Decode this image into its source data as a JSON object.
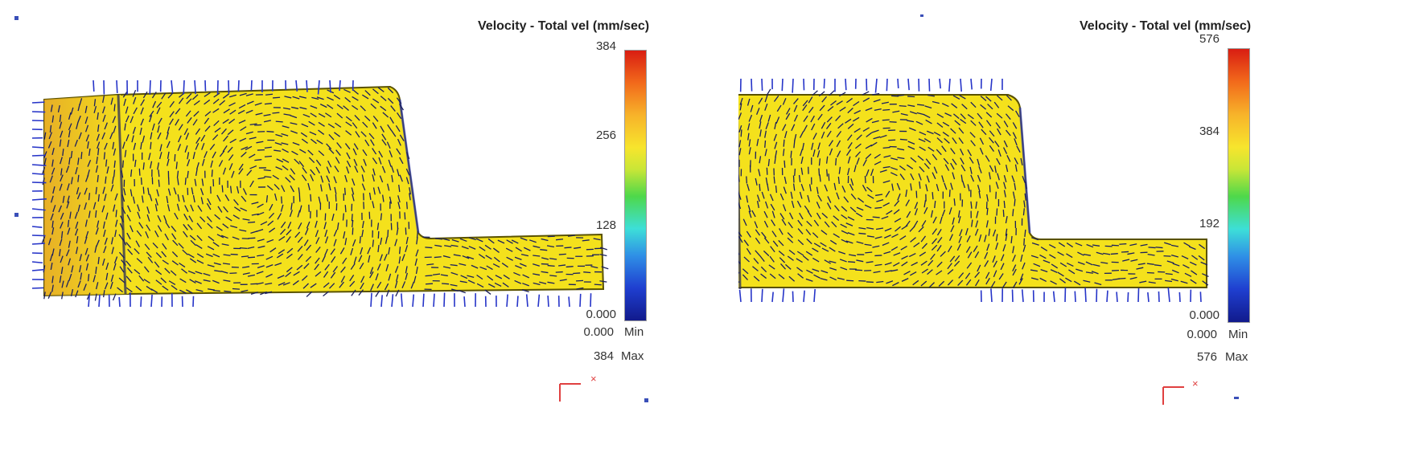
{
  "colors": {
    "part_fill": "#f4e11c",
    "part_edge": "#5a5200",
    "arrow_main": "#1a1f5e",
    "boundary_arrow": "#2634c8",
    "legend_gradient": [
      "#d91d12",
      "#f7b32a",
      "#f7e52d",
      "#4ed84a",
      "#3ddfd8",
      "#2f8fe6",
      "#111a8c"
    ]
  },
  "panels": [
    {
      "title": "Velocity - Total vel (mm/sec)",
      "scale": {
        "ticks": [
          "384",
          "256",
          "128",
          "0.000"
        ],
        "min_value": "0.000",
        "min_label": "Min",
        "max_value": "384",
        "max_label": "Max"
      },
      "axis_label": "×"
    },
    {
      "title": "Velocity - Total vel (mm/sec)",
      "scale": {
        "ticks": [
          "576",
          "384",
          "192",
          "0.000"
        ],
        "min_value": "0.000",
        "min_label": "Min",
        "max_value": "576",
        "max_label": "Max"
      },
      "axis_label": "×"
    }
  ]
}
